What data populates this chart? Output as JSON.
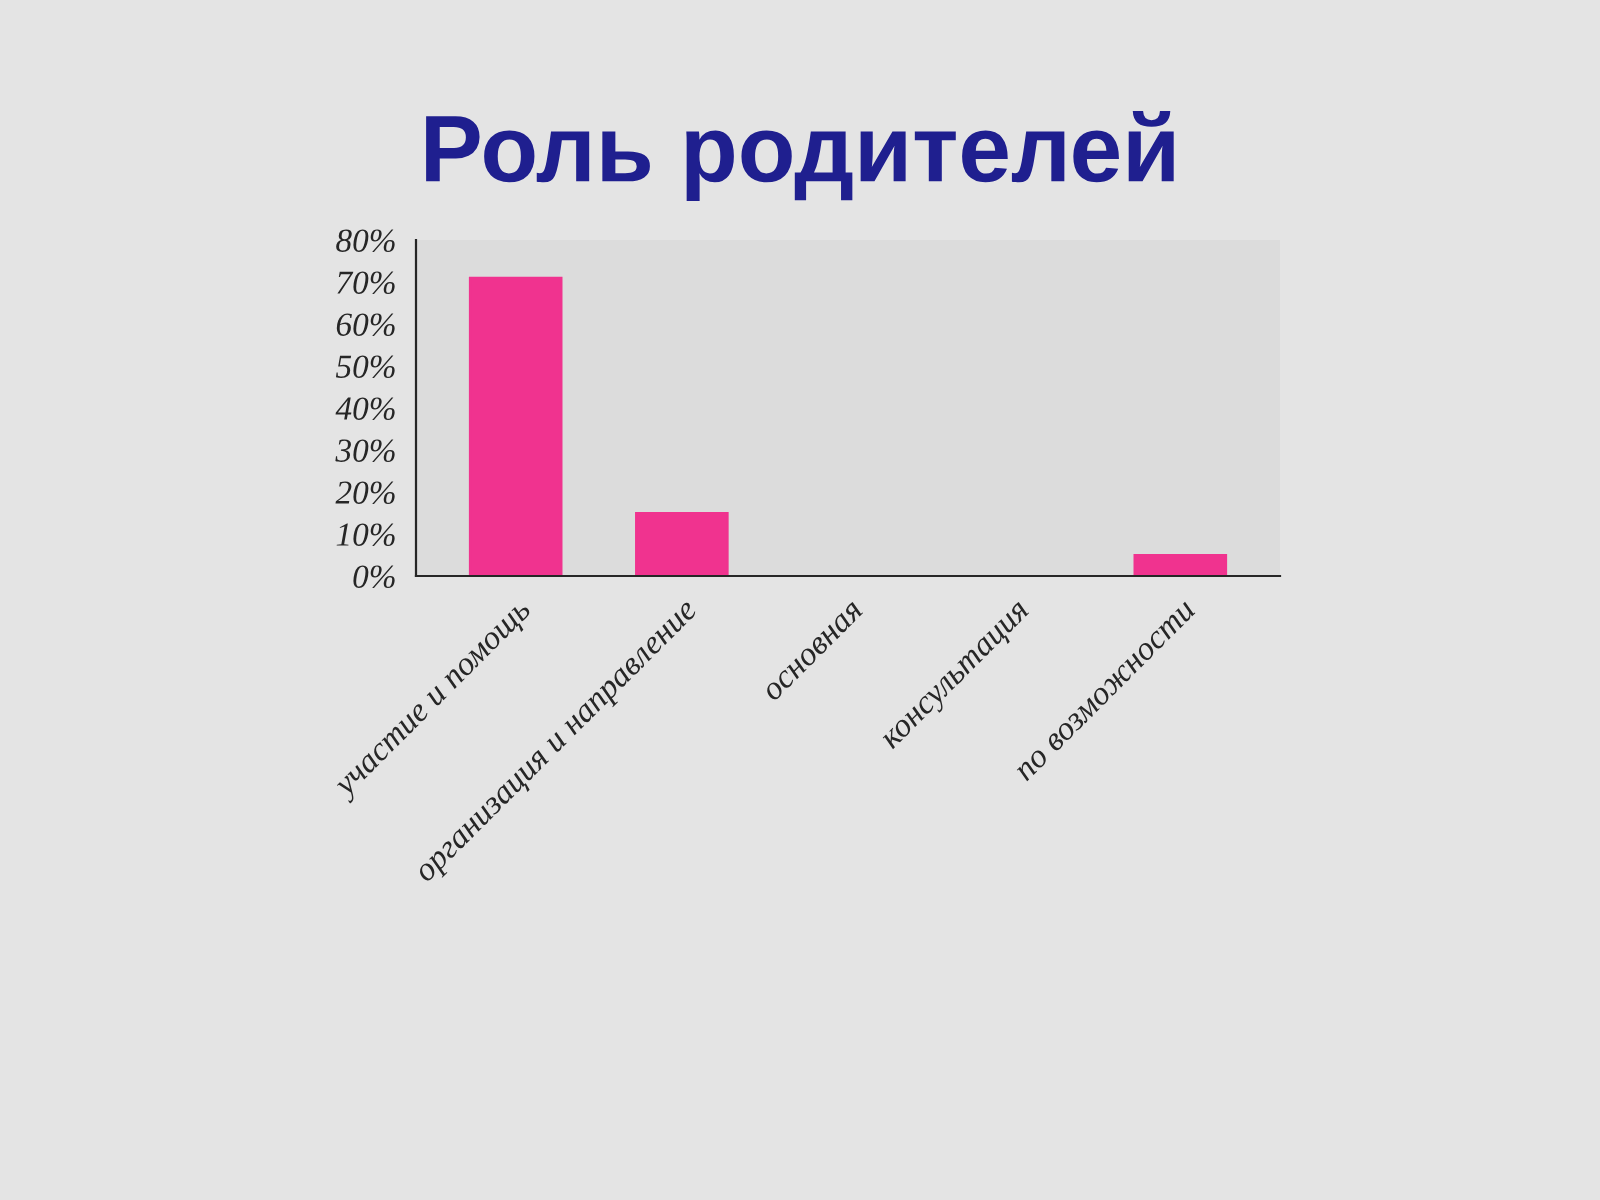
{
  "chart_data": {
    "type": "bar",
    "title": "Роль родителей",
    "categories": [
      "участие и помощь",
      "организация и направление",
      "основная",
      "консультация",
      "по возможности"
    ],
    "values": [
      71,
      15,
      0,
      0,
      5
    ],
    "color": "#f0338f",
    "ylim": [
      0,
      80
    ],
    "yticks": [
      {
        "value": 0,
        "label": "0%"
      },
      {
        "value": 10,
        "label": "10%"
      },
      {
        "value": 20,
        "label": "20%"
      },
      {
        "value": 30,
        "label": "30%"
      },
      {
        "value": 40,
        "label": "40%"
      },
      {
        "value": 50,
        "label": "50%"
      },
      {
        "value": 60,
        "label": "60%"
      },
      {
        "value": 70,
        "label": "70%"
      },
      {
        "value": 80,
        "label": "80%"
      }
    ],
    "grid": false
  }
}
